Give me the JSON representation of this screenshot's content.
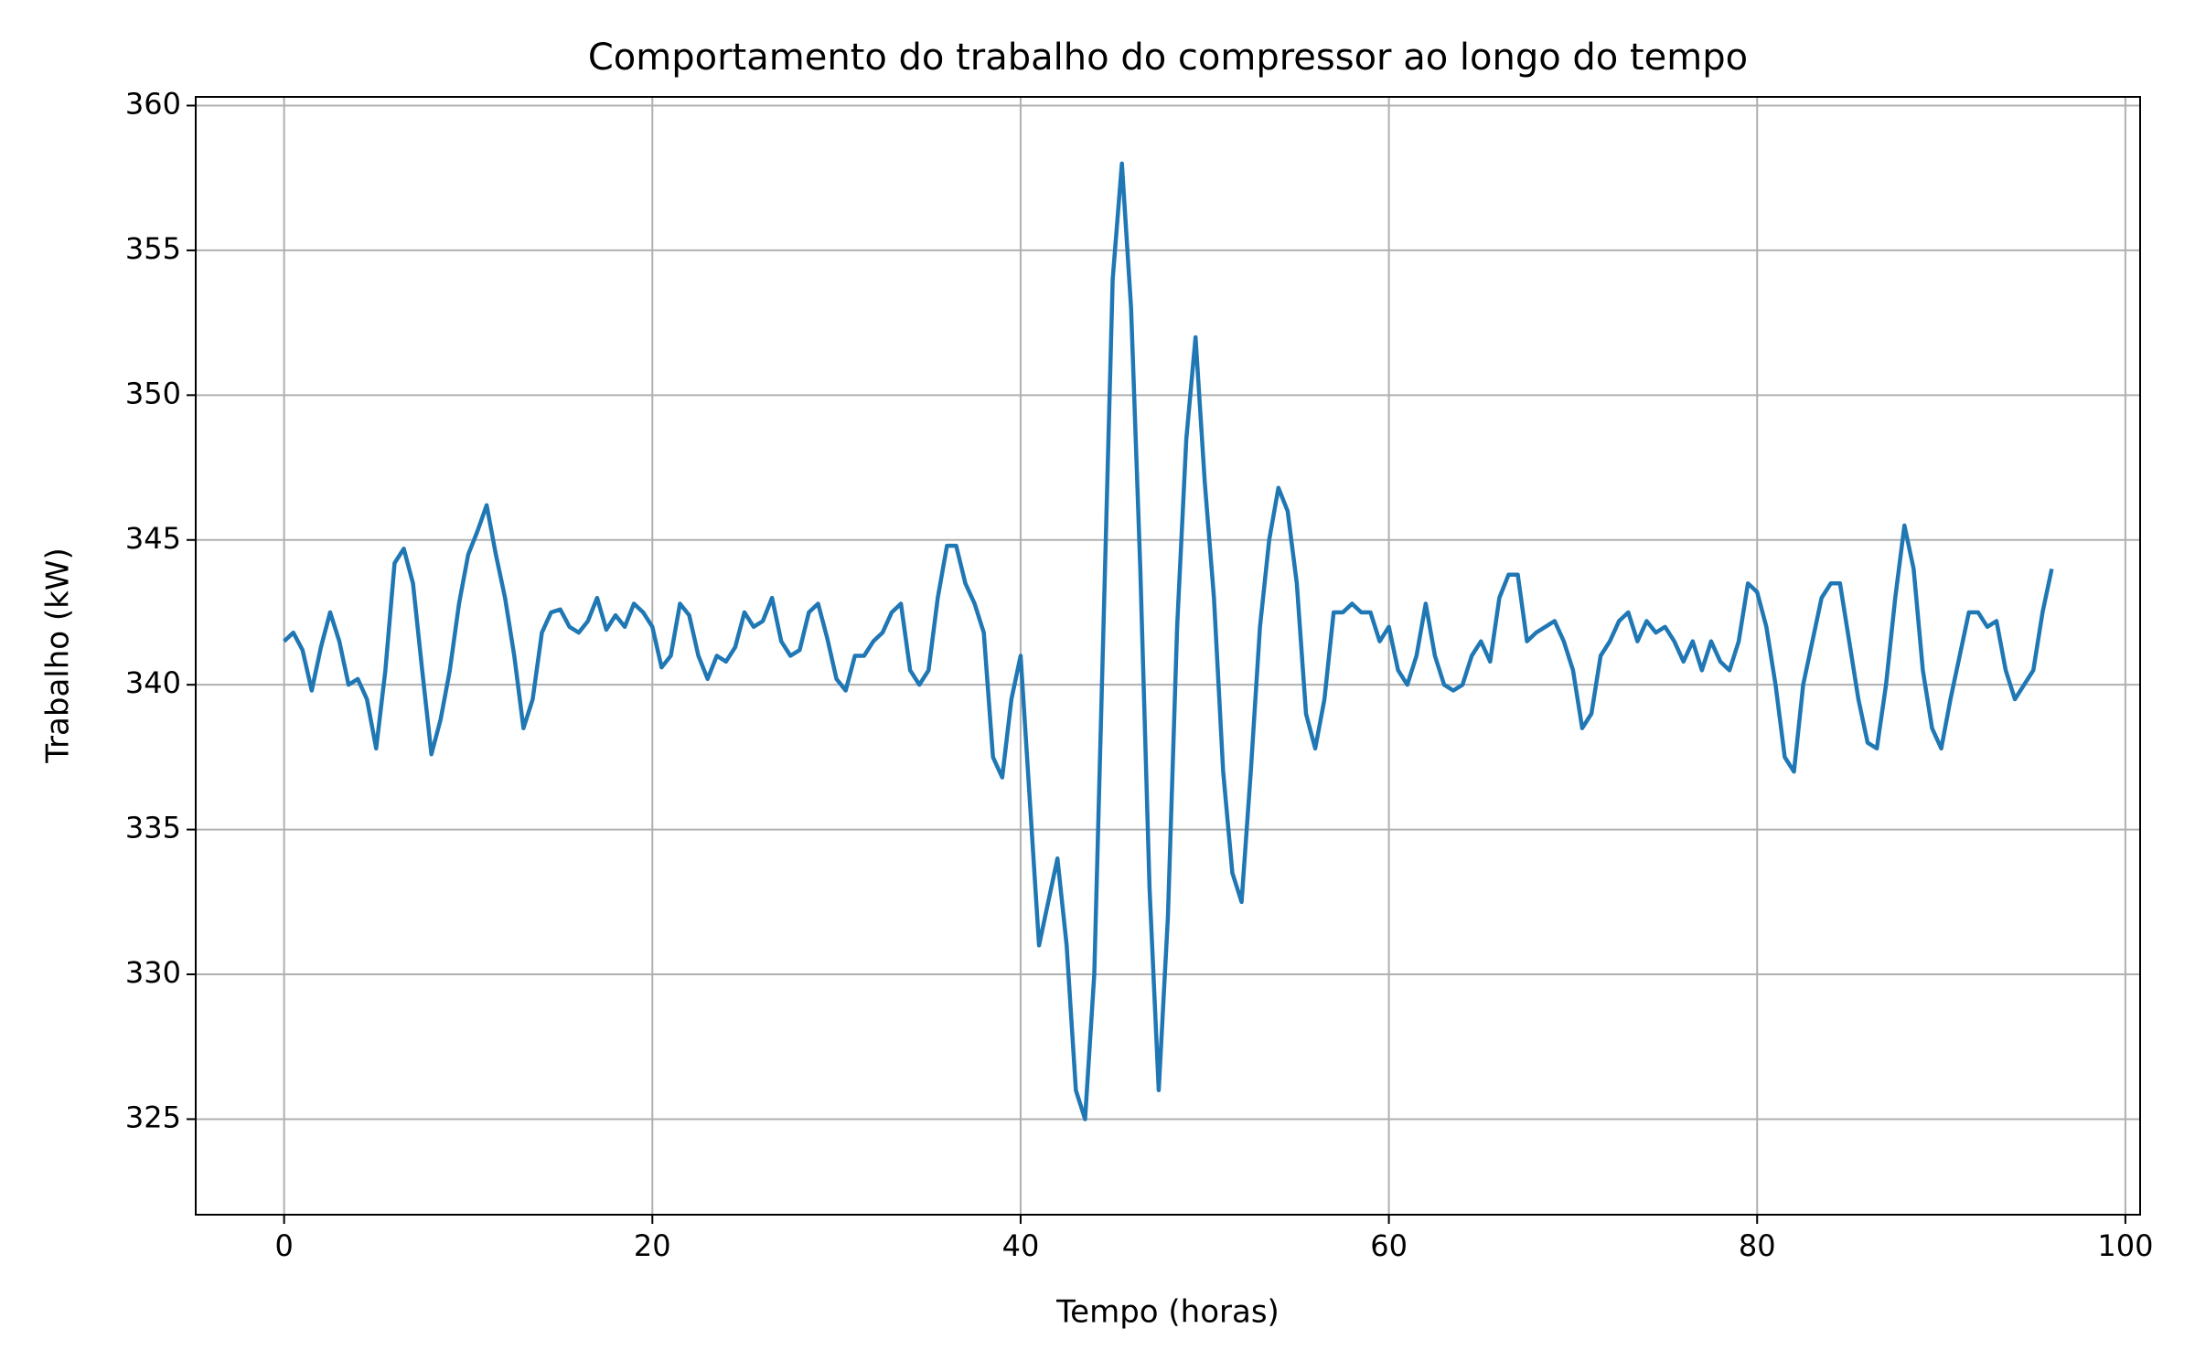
{
  "chart_data": {
    "type": "line",
    "title": "Comportamento do trabalho do compressor ao longo do tempo",
    "x_label": "Tempo (horas)",
    "y_label": "Trabalho (kW)",
    "x": [
      0,
      0.5,
      1,
      1.5,
      2,
      2.5,
      3,
      3.5,
      4,
      4.5,
      5,
      5.5,
      6,
      6.5,
      7,
      7.5,
      8,
      8.5,
      9,
      9.5,
      10,
      10.5,
      11,
      11.5,
      12,
      12.5,
      13,
      13.5,
      14,
      14.5,
      15,
      15.5,
      16,
      16.5,
      17,
      17.5,
      18,
      18.5,
      19,
      19.5,
      20,
      20.5,
      21,
      21.5,
      22,
      22.5,
      23,
      23.5,
      24,
      24.5,
      25,
      25.5,
      26,
      26.5,
      27,
      27.5,
      28,
      28.5,
      29,
      29.5,
      30,
      30.5,
      31,
      31.5,
      32,
      32.5,
      33,
      33.5,
      34,
      34.5,
      35,
      35.5,
      36,
      36.5,
      37,
      37.5,
      38,
      38.5,
      39,
      39.5,
      40,
      40.5,
      41,
      41.5,
      42,
      42.5,
      43,
      43.5,
      44,
      44.5,
      45,
      45.5,
      46,
      46.5,
      47,
      47.5,
      48,
      48.5,
      49,
      49.5,
      50,
      50.5,
      51,
      51.5,
      52,
      52.5,
      53,
      53.5,
      54,
      54.5,
      55,
      55.5,
      56,
      56.5,
      57,
      57.5,
      58,
      58.5,
      59,
      59.5,
      60,
      60.5,
      61,
      61.5,
      62,
      62.5,
      63,
      63.5,
      64,
      64.5,
      65,
      65.5,
      66,
      66.5,
      67,
      67.5,
      68,
      68.5,
      69,
      69.5,
      70,
      70.5,
      71,
      71.5,
      72,
      72.5,
      73,
      73.5,
      74,
      74.5,
      75,
      75.5,
      76,
      76.5,
      77,
      77.5,
      78,
      78.5,
      79,
      79.5,
      80,
      80.5,
      81,
      81.5,
      82,
      82.5,
      83,
      83.5,
      84,
      84.5,
      85,
      85.5,
      86,
      86.5,
      87,
      87.5,
      88,
      88.5,
      89,
      89.5,
      90,
      90.5,
      91,
      91.5,
      92,
      92.5,
      93,
      93.5,
      94,
      94.5,
      95,
      95.5,
      96
    ],
    "series": [
      {
        "name": "Trabalho",
        "color": "#1f77b4",
        "values": [
          341.5,
          341.8,
          341.2,
          339.8,
          341.3,
          342.5,
          341.5,
          340.0,
          340.2,
          339.5,
          337.8,
          340.5,
          344.2,
          344.7,
          343.5,
          340.5,
          337.6,
          338.8,
          340.5,
          342.8,
          344.5,
          345.3,
          346.2,
          344.5,
          343.0,
          341.0,
          338.5,
          339.5,
          341.8,
          342.5,
          342.6,
          342.0,
          341.8,
          342.2,
          343.0,
          341.9,
          342.4,
          342.0,
          342.8,
          342.5,
          342.0,
          340.6,
          341.0,
          342.8,
          342.4,
          341.0,
          340.2,
          341.0,
          340.8,
          341.3,
          342.5,
          342.0,
          342.2,
          343.0,
          341.5,
          341.0,
          341.2,
          342.5,
          342.8,
          341.6,
          340.2,
          339.8,
          341.0,
          341.0,
          341.5,
          341.8,
          342.5,
          342.8,
          340.5,
          340.0,
          340.5,
          343.0,
          344.8,
          344.8,
          343.5,
          342.8,
          341.8,
          337.5,
          336.8,
          339.5,
          341.0,
          336.0,
          331.0,
          332.5,
          334.0,
          331.0,
          326.0,
          325.0,
          330.0,
          342.0,
          354.0,
          358.0,
          353.0,
          344.0,
          333.0,
          326.0,
          332.0,
          342.0,
          348.5,
          352.0,
          347.0,
          343.0,
          337.0,
          333.5,
          332.5,
          337.0,
          342.0,
          345.0,
          346.8,
          346.0,
          343.5,
          339.0,
          337.8,
          339.5,
          342.5,
          342.5,
          342.8,
          342.5,
          342.5,
          341.5,
          342.0,
          340.5,
          340.0,
          341.0,
          342.8,
          341.0,
          340.0,
          339.8,
          340.0,
          341.0,
          341.5,
          340.8,
          343.0,
          343.8,
          343.8,
          341.5,
          341.8,
          342.0,
          342.2,
          341.5,
          340.5,
          338.5,
          339.0,
          341.0,
          341.5,
          342.2,
          342.5,
          341.5,
          342.2,
          341.8,
          342.0,
          341.5,
          340.8,
          341.5,
          340.5,
          341.5,
          340.8,
          340.5,
          341.5,
          343.5,
          343.2,
          342.0,
          340.0,
          337.5,
          337.0,
          340.0,
          341.5,
          343.0,
          343.5,
          343.5,
          341.5,
          339.5,
          338.0,
          337.8,
          340.0,
          343.0,
          345.5,
          344.0,
          340.5,
          338.5,
          337.8,
          339.5,
          341.0,
          342.5,
          342.5,
          342.0,
          342.2,
          340.5,
          339.5,
          340.0,
          340.5,
          342.5,
          344.0
        ]
      }
    ],
    "xlim": [
      -4.8,
      100.8
    ],
    "ylim": [
      321.7,
      360.3
    ],
    "xticks": [
      0,
      20,
      40,
      60,
      80,
      100
    ],
    "yticks": [
      325,
      330,
      335,
      340,
      345,
      350,
      355,
      360
    ],
    "grid": true
  }
}
